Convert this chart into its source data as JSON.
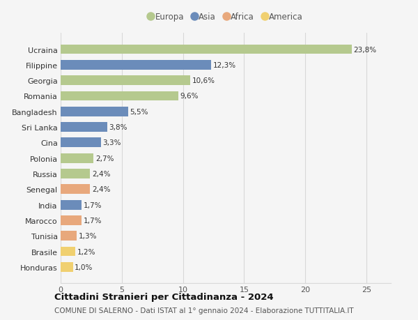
{
  "countries": [
    "Ucraina",
    "Filippine",
    "Georgia",
    "Romania",
    "Bangladesh",
    "Sri Lanka",
    "Cina",
    "Polonia",
    "Russia",
    "Senegal",
    "India",
    "Marocco",
    "Tunisia",
    "Brasile",
    "Honduras"
  ],
  "values": [
    23.8,
    12.3,
    10.6,
    9.6,
    5.5,
    3.8,
    3.3,
    2.7,
    2.4,
    2.4,
    1.7,
    1.7,
    1.3,
    1.2,
    1.0
  ],
  "labels": [
    "23,8%",
    "12,3%",
    "10,6%",
    "9,6%",
    "5,5%",
    "3,8%",
    "3,3%",
    "2,7%",
    "2,4%",
    "2,4%",
    "1,7%",
    "1,7%",
    "1,3%",
    "1,2%",
    "1,0%"
  ],
  "continents": [
    "Europa",
    "Asia",
    "Europa",
    "Europa",
    "Asia",
    "Asia",
    "Asia",
    "Europa",
    "Europa",
    "Africa",
    "Asia",
    "Africa",
    "Africa",
    "America",
    "America"
  ],
  "colors": {
    "Europa": "#b5c98e",
    "Asia": "#6b8cba",
    "Africa": "#e8a87c",
    "America": "#f0d070"
  },
  "legend_order": [
    "Europa",
    "Asia",
    "Africa",
    "America"
  ],
  "title": "Cittadini Stranieri per Cittadinanza - 2024",
  "subtitle": "COMUNE DI SALERNO - Dati ISTAT al 1° gennaio 2024 - Elaborazione TUTTITALIA.IT",
  "xlim": [
    0,
    27
  ],
  "xticks": [
    0,
    5,
    10,
    15,
    20,
    25
  ],
  "background_color": "#f5f5f5",
  "grid_color": "#d8d8d8",
  "bar_height": 0.62,
  "label_fontsize": 7.5,
  "ytick_fontsize": 8.0,
  "xtick_fontsize": 8.0,
  "legend_fontsize": 8.5,
  "title_fontsize": 9.5,
  "subtitle_fontsize": 7.5
}
